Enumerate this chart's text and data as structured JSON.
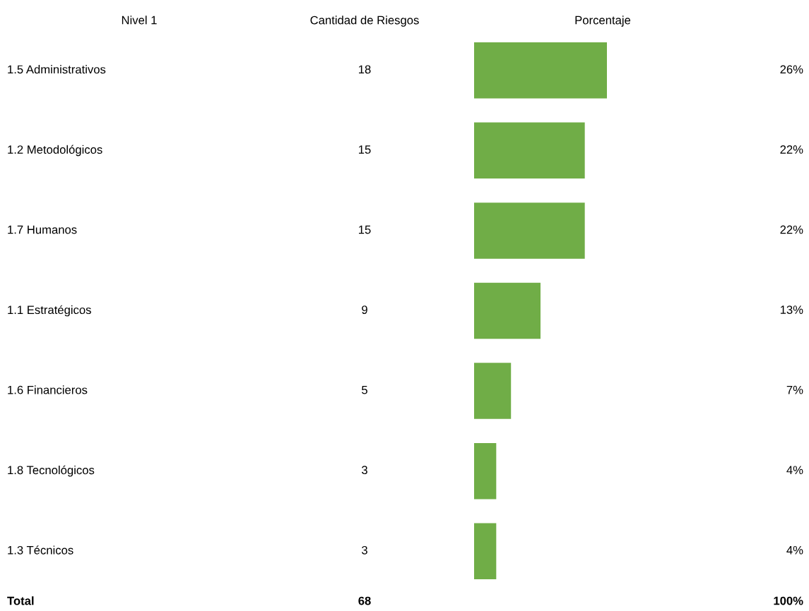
{
  "chart_data": {
    "type": "bar",
    "orientation": "horizontal",
    "categories": [
      "1.5 Administrativos",
      "1.2 Metodológicos",
      "1.7 Humanos",
      "1.1 Estratégicos",
      "1.6 Financieros",
      "1.8 Tecnológicos",
      "1.3 Técnicos"
    ],
    "values": [
      18,
      15,
      15,
      9,
      5,
      3,
      3
    ],
    "color": "#70ad47",
    "data_labels": true,
    "grid": false,
    "legend": false,
    "annotations": [
      "Nivel 1",
      "Cantidad de Riesgos",
      "Porcentaje",
      "26%",
      "22%",
      "22%",
      "13%",
      "7%",
      "4%",
      "4%",
      "Total",
      "68",
      "100%"
    ]
  }
}
